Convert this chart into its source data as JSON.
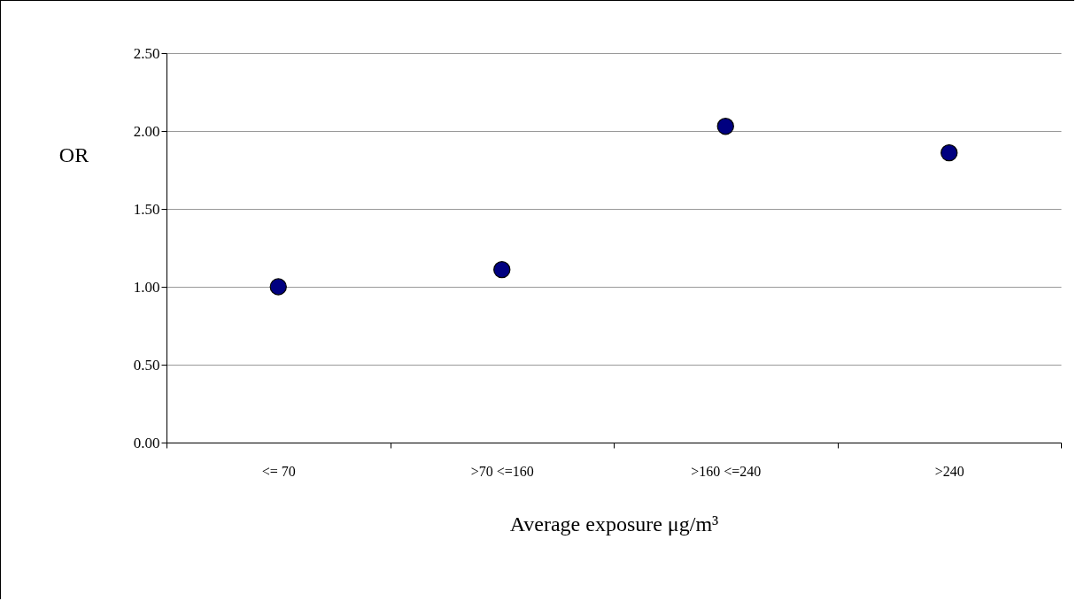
{
  "chart_data": {
    "type": "scatter",
    "xlabel": "Average exposure μg/m³",
    "ylabel": "OR",
    "categories": [
      "<= 70",
      ">70 <=160",
      ">160 <=240",
      ">240"
    ],
    "series": [
      {
        "color": "#000080",
        "values": [
          1.0,
          1.11,
          2.03,
          1.86
        ]
      }
    ],
    "ylim": [
      0,
      2.5
    ],
    "yticks": [
      {
        "value": 0,
        "label": "0.00"
      },
      {
        "value": 0.5,
        "label": "0.50"
      },
      {
        "value": 1,
        "label": "1.00"
      },
      {
        "value": 1.5,
        "label": "1.50"
      },
      {
        "value": 2,
        "label": "2.00"
      },
      {
        "value": 2.5,
        "label": "2.50"
      }
    ],
    "grid": "y",
    "marker": "circle"
  }
}
